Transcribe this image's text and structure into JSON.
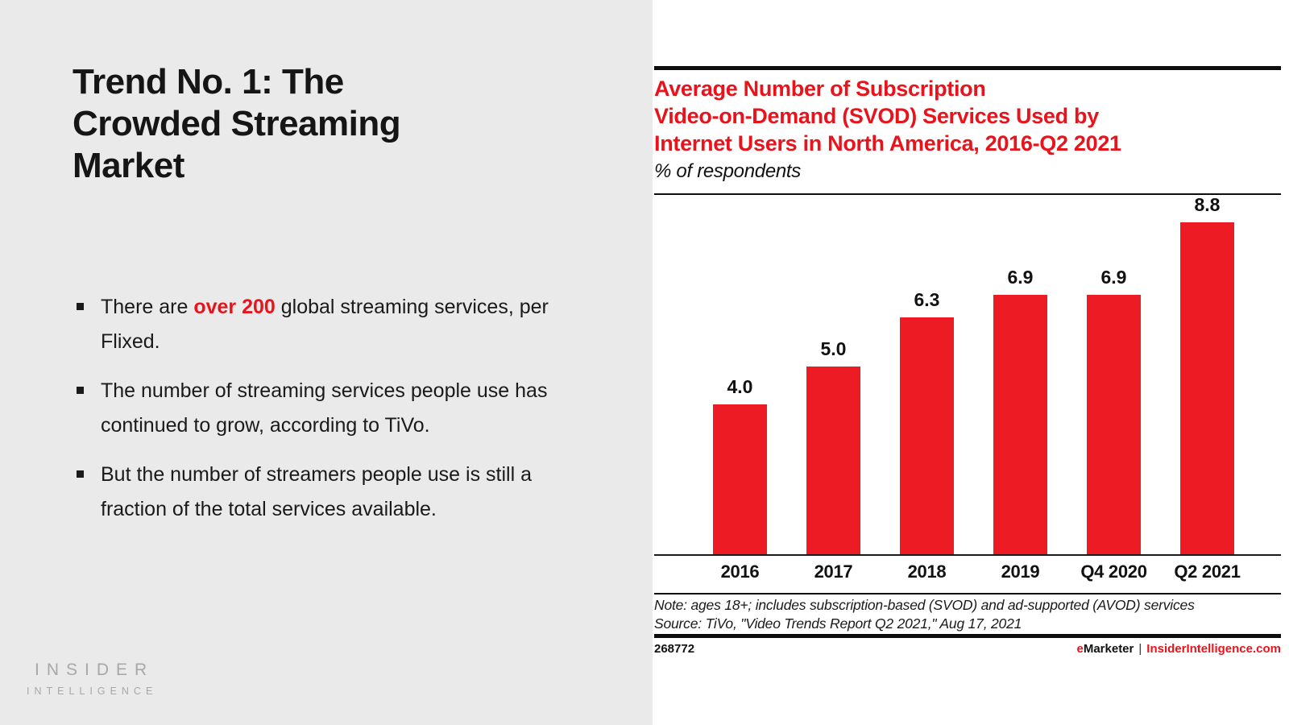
{
  "slide": {
    "title_lines": [
      "Trend No. 1: The",
      "Crowded Streaming",
      "Market"
    ],
    "bullets": [
      {
        "pre": "There are ",
        "highlight": "over 200",
        "post": " global streaming services, per Flixed."
      },
      {
        "pre": "The number of streaming services people use has continued to grow, according to TiVo.",
        "highlight": "",
        "post": ""
      },
      {
        "pre": "But the number of streamers people use is still a fraction of the total services available.",
        "highlight": "",
        "post": ""
      }
    ],
    "logo": {
      "line1": "INSIDER",
      "line2": "INTELLIGENCE"
    }
  },
  "chart": {
    "title_lines": [
      "Average Number of Subscription",
      "Video-on-Demand (SVOD) Services Used by",
      "Internet Users in North America, 2016-Q2 2021"
    ],
    "subtitle": "% of respondents",
    "note": "Note: ages 18+; includes subscription-based (SVOD) and ad-supported (AVOD) services",
    "source": "Source: TiVo, \"Video Trends Report Q2 2021,\" Aug 17, 2021",
    "footer_id": "268772",
    "brand_e": "e",
    "brand_rest": "Marketer",
    "brand_separator": "|",
    "brand_url": "InsiderIntelligence.com"
  },
  "chart_data": {
    "type": "bar",
    "categories": [
      "2016",
      "2017",
      "2018",
      "2019",
      "Q4 2020",
      "Q2 2021"
    ],
    "values": [
      4.0,
      5.0,
      6.3,
      6.9,
      6.9,
      8.8
    ],
    "title": "Average Number of Subscription Video-on-Demand (SVOD) Services Used by Internet Users in North America, 2016-Q2 2021",
    "xlabel": "",
    "ylabel": "% of respondents",
    "ylim": [
      0,
      9.4
    ],
    "grid": false,
    "legend": "none",
    "bar_color": "#ed1c24",
    "value_label_format": "one_decimal"
  },
  "colors": {
    "accent_red": "#e8131b",
    "bar_red": "#ed1c24",
    "left_background": "#eaeaea",
    "text_black": "#1a1a1a",
    "logo_gray": "#a8a8a8"
  }
}
